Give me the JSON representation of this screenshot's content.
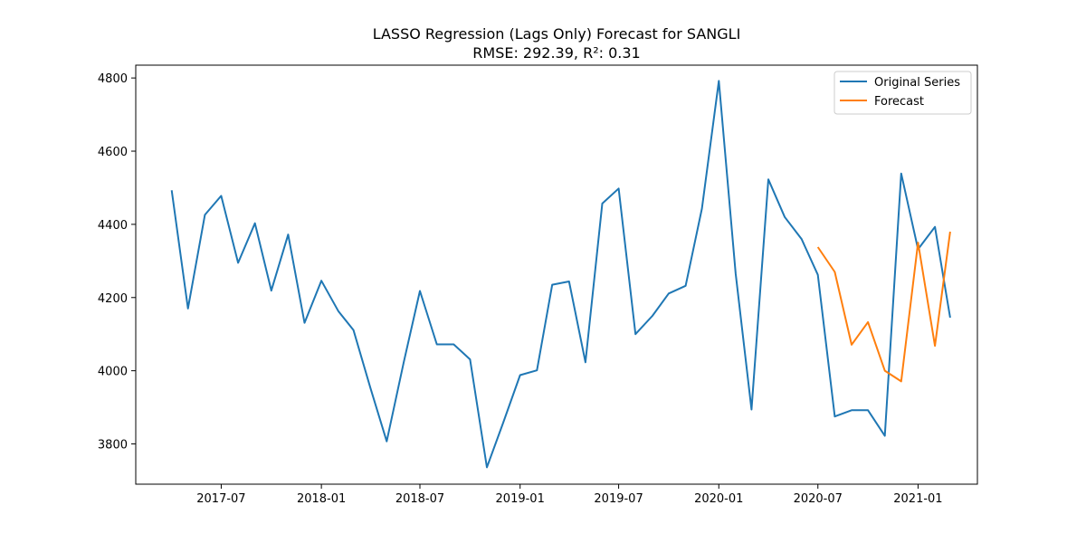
{
  "chart_data": {
    "type": "line",
    "title": "LASSO Regression (Lags Only) Forecast for SANGLI",
    "subtitle": "RMSE: 292.39, R²: 0.31",
    "xlabel": "",
    "ylabel": "",
    "x_ticks": [
      "2017-07",
      "2018-01",
      "2018-07",
      "2019-01",
      "2019-07",
      "2020-01",
      "2020-07",
      "2021-01"
    ],
    "y_ticks": [
      3800,
      4000,
      4200,
      4400,
      4600,
      4800
    ],
    "ylim": [
      3690,
      4835
    ],
    "xlim": [
      "2017-01-25",
      "2021-04-20"
    ],
    "grid": false,
    "legend_position": "top-right",
    "series": [
      {
        "name": "Original Series",
        "color": "#1f77b4",
        "points": [
          [
            "2017-04",
            4493
          ],
          [
            "2017-05",
            4170
          ],
          [
            "2017-06",
            4426
          ],
          [
            "2017-07",
            4478
          ],
          [
            "2017-08",
            4295
          ],
          [
            "2017-09",
            4403
          ],
          [
            "2017-10",
            4219
          ],
          [
            "2017-11",
            4372
          ],
          [
            "2017-12",
            4131
          ],
          [
            "2018-01",
            4246
          ],
          [
            "2018-02",
            4163
          ],
          [
            "2018-03",
            4111
          ],
          [
            "2018-04",
            3953
          ],
          [
            "2018-05",
            3807
          ],
          [
            "2018-06",
            4022
          ],
          [
            "2018-07",
            4218
          ],
          [
            "2018-08",
            4072
          ],
          [
            "2018-09",
            4072
          ],
          [
            "2018-10",
            4031
          ],
          [
            "2018-11",
            3736
          ],
          [
            "2018-12",
            3858
          ],
          [
            "2019-01",
            3988
          ],
          [
            "2019-02",
            4001
          ],
          [
            "2019-03",
            4235
          ],
          [
            "2019-04",
            4244
          ],
          [
            "2019-05",
            4023
          ],
          [
            "2019-06",
            4457
          ],
          [
            "2019-07",
            4498
          ],
          [
            "2019-08",
            4100
          ],
          [
            "2019-09",
            4150
          ],
          [
            "2019-10",
            4211
          ],
          [
            "2019-11",
            4232
          ],
          [
            "2019-12",
            4443
          ],
          [
            "2020-01",
            4792
          ],
          [
            "2020-02",
            4265
          ],
          [
            "2020-03",
            3894
          ],
          [
            "2020-04",
            4523
          ],
          [
            "2020-05",
            4420
          ],
          [
            "2020-06",
            4360
          ],
          [
            "2020-07",
            4262
          ],
          [
            "2020-08",
            3875
          ],
          [
            "2020-09",
            3892
          ],
          [
            "2020-10",
            3892
          ],
          [
            "2020-11",
            3822
          ],
          [
            "2020-12",
            4539
          ],
          [
            "2021-01",
            4332
          ],
          [
            "2021-02",
            4393
          ],
          [
            "2021-03",
            4145
          ]
        ]
      },
      {
        "name": "Forecast",
        "color": "#ff7f0e",
        "points": [
          [
            "2020-07",
            4338
          ],
          [
            "2020-08",
            4270
          ],
          [
            "2020-09",
            4071
          ],
          [
            "2020-10",
            4133
          ],
          [
            "2020-11",
            4000
          ],
          [
            "2020-12",
            3971
          ],
          [
            "2021-01",
            4350
          ],
          [
            "2021-02",
            4068
          ],
          [
            "2021-03",
            4380
          ]
        ]
      }
    ]
  }
}
